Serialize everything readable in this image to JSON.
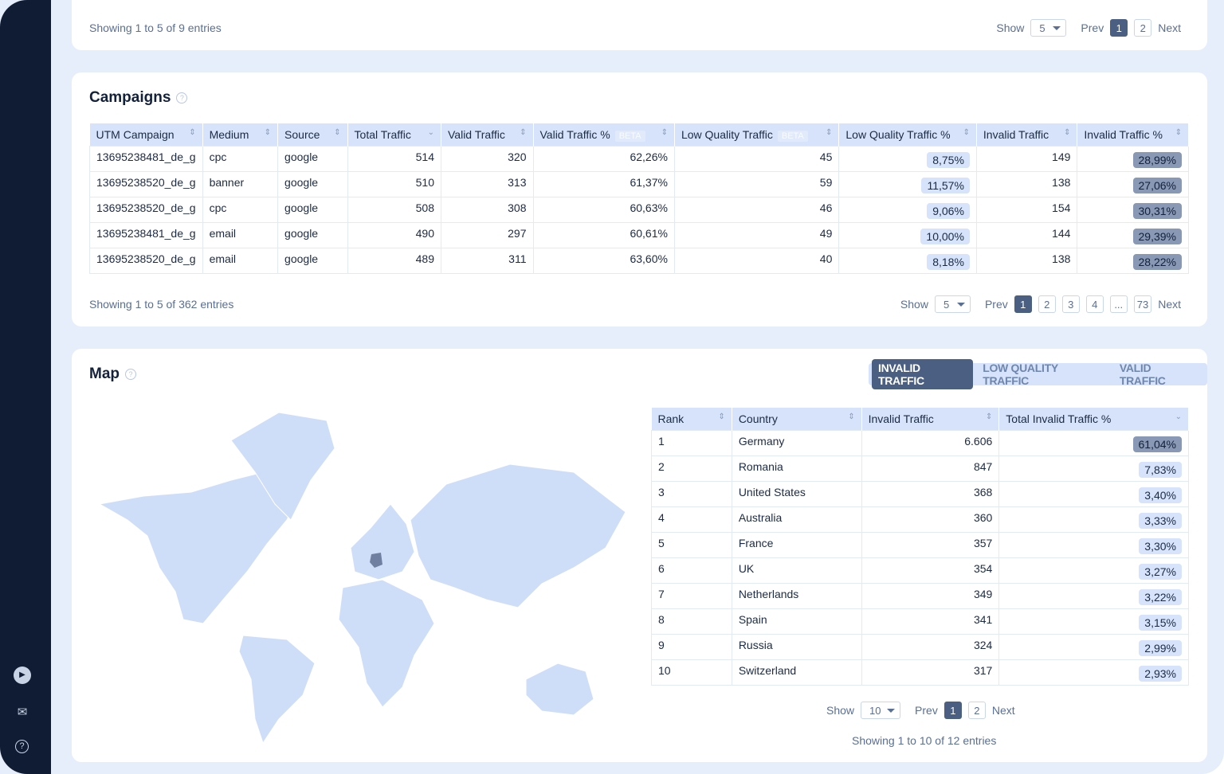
{
  "sidebar": {
    "icons": [
      "play-icon",
      "mail-icon",
      "help-icon"
    ]
  },
  "top_card": {
    "showing": "Showing 1 to 5 of 9 entries",
    "show_label": "Show",
    "show_value": "5",
    "prev": "Prev",
    "next": "Next",
    "pages": [
      "1",
      "2"
    ]
  },
  "campaigns": {
    "title": "Campaigns",
    "columns": [
      "UTM Campaign",
      "Medium",
      "Source",
      "Total Traffic",
      "Valid Traffic",
      "Valid Traffic %",
      "Low Quality Traffic",
      "Low Quality Traffic %",
      "Invalid Traffic",
      "Invalid Traffic %"
    ],
    "beta": "BETA",
    "rows": [
      [
        "13695238481_de_g",
        "cpc",
        "google",
        "514",
        "320",
        "62,26%",
        "45",
        "8,75%",
        "149",
        "28,99%"
      ],
      [
        "13695238520_de_g",
        "banner",
        "google",
        "510",
        "313",
        "61,37%",
        "59",
        "11,57%",
        "138",
        "27,06%"
      ],
      [
        "13695238520_de_g",
        "cpc",
        "google",
        "508",
        "308",
        "60,63%",
        "46",
        "9,06%",
        "154",
        "30,31%"
      ],
      [
        "13695238481_de_g",
        "email",
        "google",
        "490",
        "297",
        "60,61%",
        "49",
        "10,00%",
        "144",
        "29,39%"
      ],
      [
        "13695238520_de_g",
        "email",
        "google",
        "489",
        "311",
        "63,60%",
        "40",
        "8,18%",
        "138",
        "28,22%"
      ]
    ],
    "showing": "Showing 1 to 5 of 362 entries",
    "show_label": "Show",
    "show_value": "5",
    "prev": "Prev",
    "next": "Next",
    "pages": [
      "1",
      "2",
      "3",
      "4",
      "...",
      "73"
    ]
  },
  "map": {
    "title": "Map",
    "tabs": [
      "INVALID TRAFFIC",
      "LOW QUALITY TRAFFIC",
      "VALID TRAFFIC"
    ],
    "active_tab": 0,
    "highlight_color": "#6f80a0",
    "land_color": "#cfdef8",
    "columns": [
      "Rank",
      "Country",
      "Invalid Traffic",
      "Total Invalid Traffic %"
    ],
    "rows": [
      [
        "1",
        "Germany",
        "6.606",
        "61,04%"
      ],
      [
        "2",
        "Romania",
        "847",
        "7,83%"
      ],
      [
        "3",
        "United States",
        "368",
        "3,40%"
      ],
      [
        "4",
        "Australia",
        "360",
        "3,33%"
      ],
      [
        "5",
        "France",
        "357",
        "3,30%"
      ],
      [
        "6",
        "UK",
        "354",
        "3,27%"
      ],
      [
        "7",
        "Netherlands",
        "349",
        "3,22%"
      ],
      [
        "8",
        "Spain",
        "341",
        "3,15%"
      ],
      [
        "9",
        "Russia",
        "324",
        "2,99%"
      ],
      [
        "10",
        "Switzerland",
        "317",
        "2,93%"
      ]
    ],
    "show_label": "Show",
    "show_value": "10",
    "prev": "Prev",
    "next": "Next",
    "pages": [
      "1",
      "2"
    ],
    "showing": "Showing 1 to 10 of 12 entries"
  }
}
